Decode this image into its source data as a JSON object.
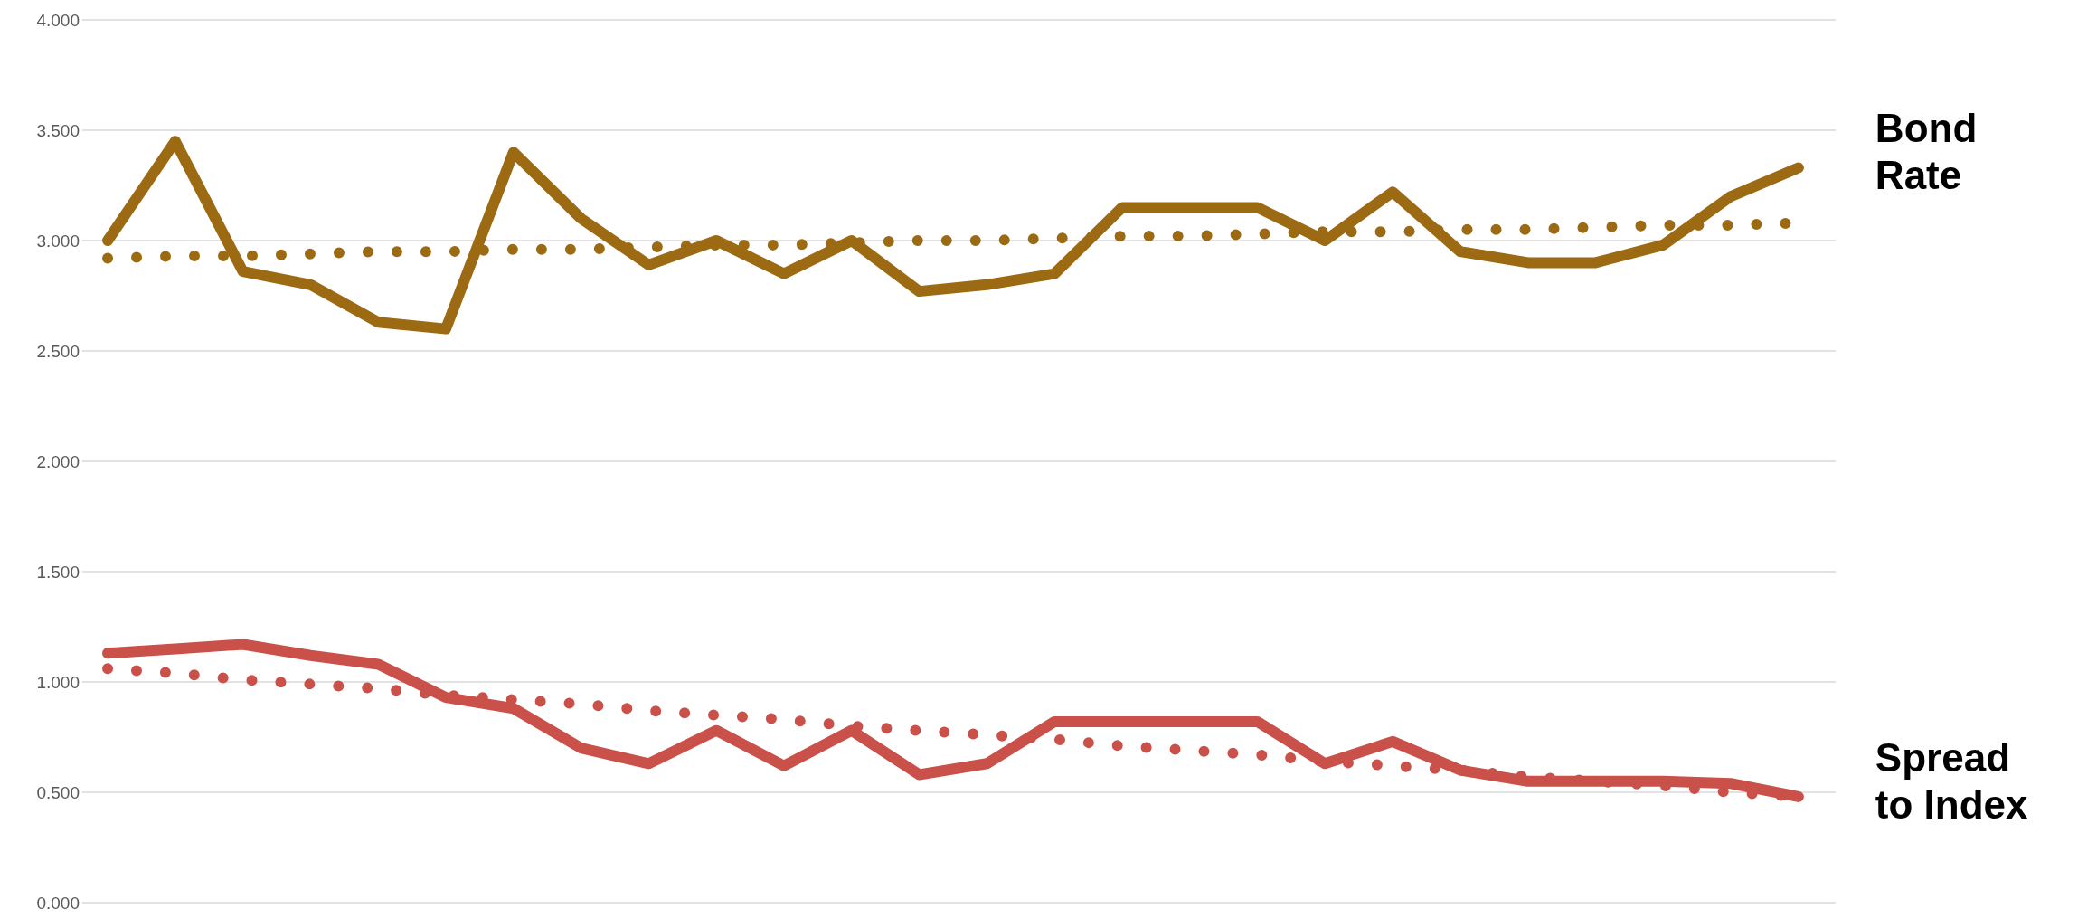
{
  "chart_data": {
    "type": "line",
    "categories": [
      null,
      null,
      null,
      null,
      null,
      null,
      null,
      null,
      null,
      null,
      null,
      null,
      null,
      null,
      null,
      null,
      null,
      null,
      null,
      null,
      null,
      null,
      null,
      null,
      null,
      null
    ],
    "series": [
      {
        "name": "Bond Rate",
        "color": "#9c6a12",
        "values": [
          3.0,
          3.45,
          2.86,
          2.8,
          2.63,
          2.6,
          3.4,
          3.1,
          2.89,
          3.0,
          2.85,
          3.0,
          2.77,
          2.8,
          2.85,
          3.15,
          3.15,
          3.15,
          3.0,
          3.22,
          2.95,
          2.9,
          2.9,
          2.98,
          3.2,
          3.33
        ]
      },
      {
        "name": "Spread to Index",
        "color": "#c9514a",
        "values": [
          1.13,
          1.15,
          1.17,
          1.12,
          1.08,
          0.93,
          0.88,
          0.7,
          0.63,
          0.78,
          0.62,
          0.78,
          0.58,
          0.63,
          0.82,
          0.82,
          0.82,
          0.82,
          0.63,
          0.73,
          0.6,
          0.55,
          0.55,
          0.55,
          0.54,
          0.48
        ]
      },
      {
        "color": "#9c6a12",
        "line_style": "dotted",
        "values": [
          2.92,
          2.93,
          2.93,
          2.94,
          2.95,
          2.95,
          2.96,
          2.96,
          2.97,
          2.98,
          2.98,
          2.99,
          3.0,
          3.0,
          3.01,
          3.02,
          3.02,
          3.03,
          3.04,
          3.04,
          3.05,
          3.05,
          3.06,
          3.07,
          3.07,
          3.08
        ]
      },
      {
        "color": "#c9514a",
        "line_style": "dotted",
        "values": [
          1.06,
          1.04,
          1.01,
          0.99,
          0.97,
          0.94,
          0.92,
          0.9,
          0.87,
          0.85,
          0.83,
          0.8,
          0.78,
          0.76,
          0.74,
          0.71,
          0.69,
          0.67,
          0.64,
          0.62,
          0.6,
          0.57,
          0.55,
          0.53,
          0.5,
          0.48
        ]
      }
    ],
    "line_style": "solid",
    "ylim": [
      0,
      4
    ],
    "yticks": [
      {
        "value": 0,
        "label": "0.000"
      },
      {
        "value": 0.5,
        "label": "0.500"
      },
      {
        "value": 1,
        "label": "1.000"
      },
      {
        "value": 1.5,
        "label": "1.500"
      },
      {
        "value": 2,
        "label": "2.000"
      },
      {
        "value": 2.5,
        "label": "2.500"
      },
      {
        "value": 3,
        "label": "3.000"
      },
      {
        "value": 3.5,
        "label": "3.500"
      },
      {
        "value": 4,
        "label": "4.000"
      }
    ],
    "grid": "y",
    "tick_labels": "y",
    "marker": "none"
  }
}
